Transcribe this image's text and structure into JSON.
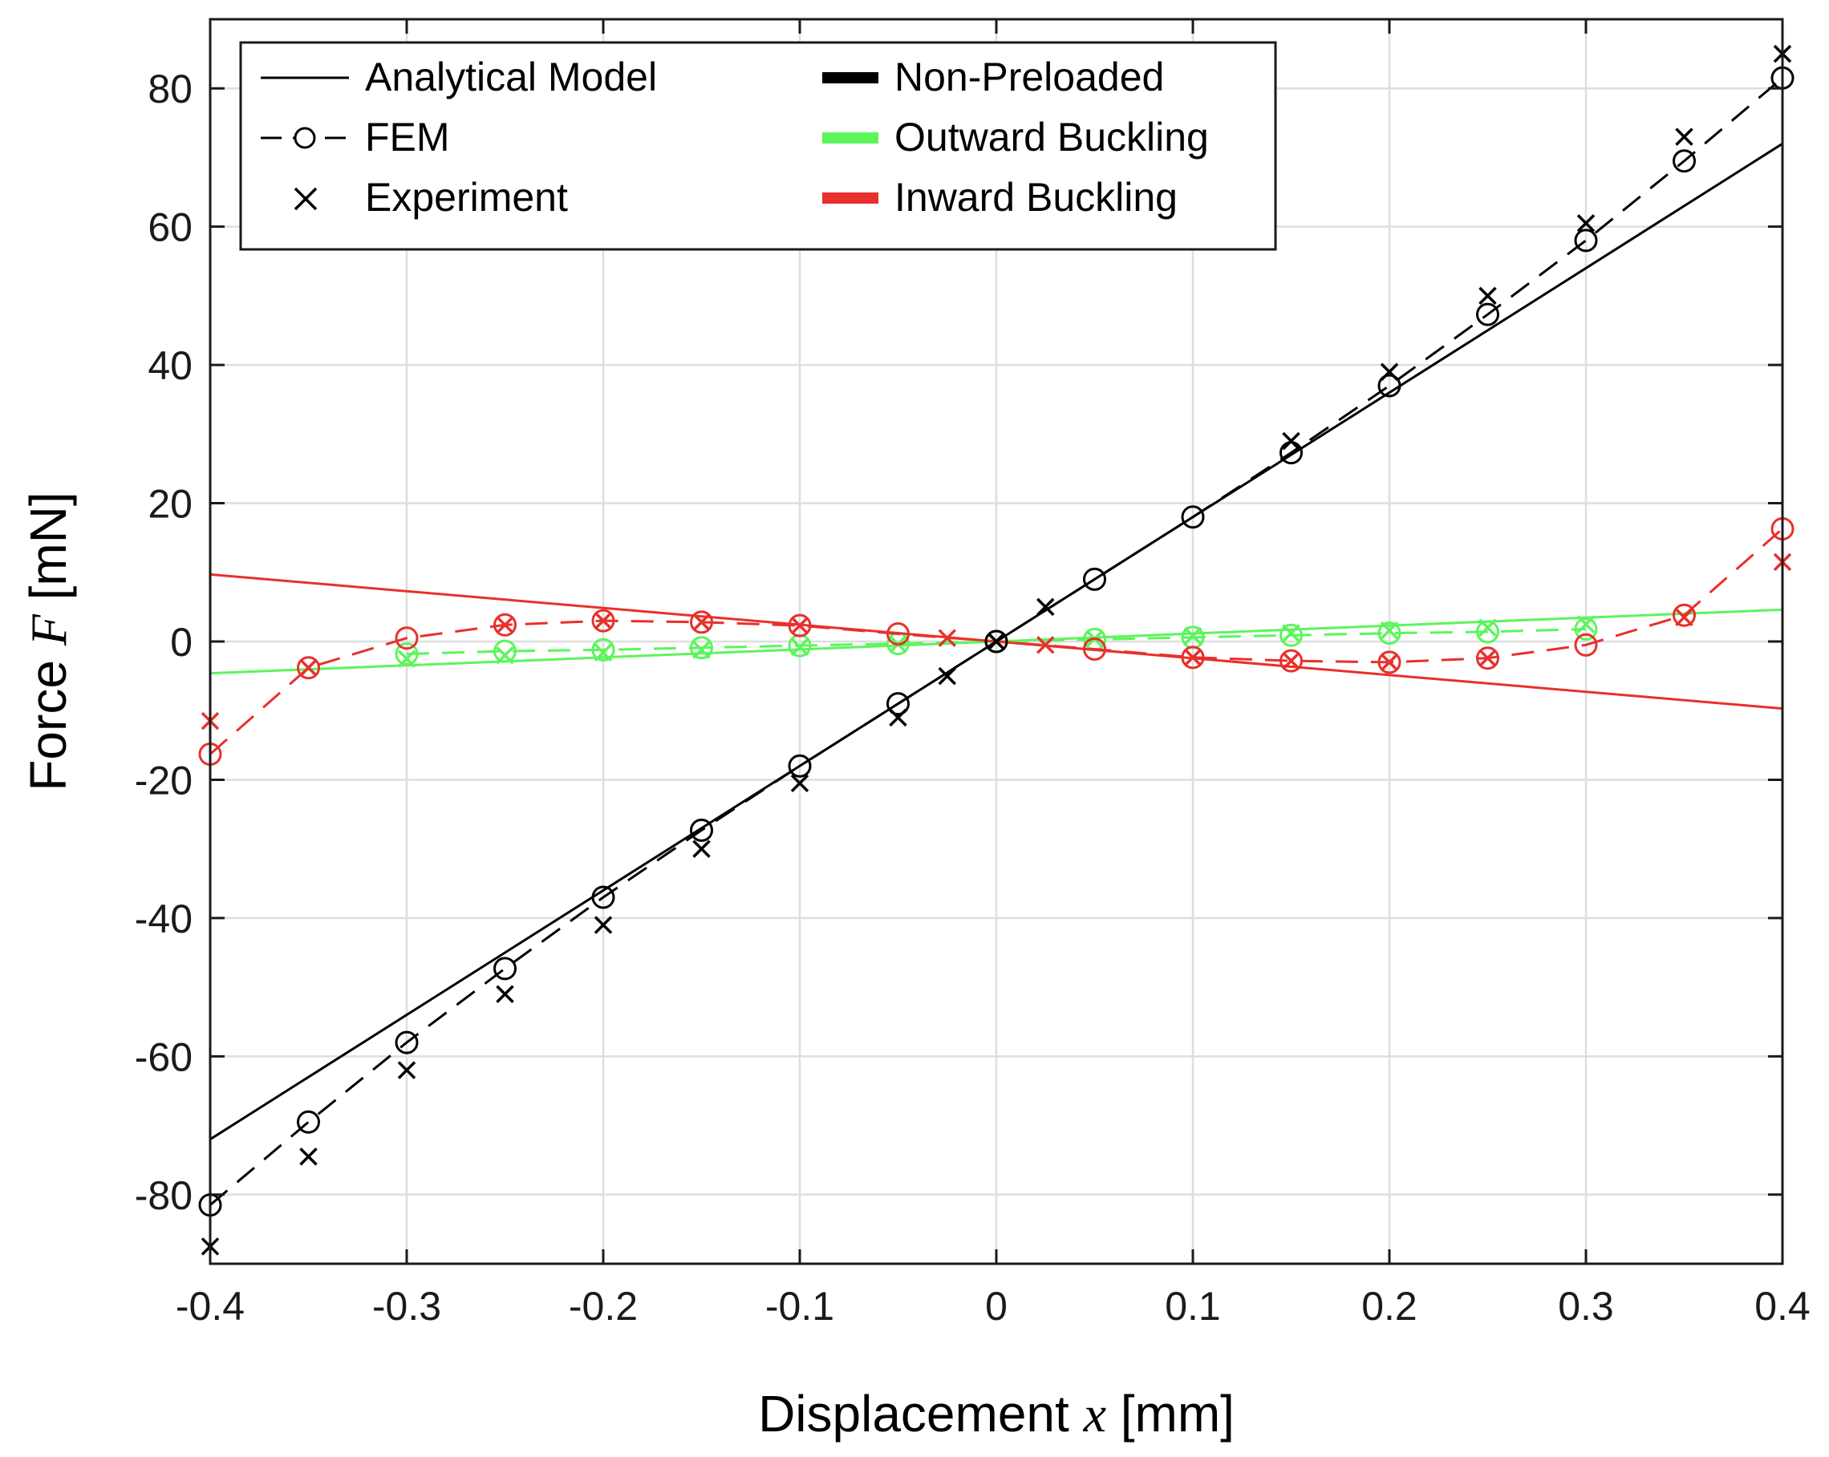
{
  "chart_data": {
    "type": "line",
    "xlabel": "Displacement",
    "xlabel_var": "x",
    "xlabel_unit": "[mm]",
    "ylabel": "Force",
    "ylabel_var": "F",
    "ylabel_unit": "[mN]",
    "xlim": [
      -0.4,
      0.4
    ],
    "ylim": [
      -90,
      90
    ],
    "xticks": [
      -0.4,
      -0.3,
      -0.2,
      -0.1,
      0,
      0.1,
      0.2,
      0.3,
      0.4
    ],
    "xtick_labels": [
      "-0.4",
      "-0.3",
      "-0.2",
      "-0.1",
      "0",
      "0.1",
      "0.2",
      "0.3",
      "0.4"
    ],
    "yticks": [
      -80,
      -60,
      -40,
      -20,
      0,
      20,
      40,
      60,
      80
    ],
    "ytick_labels": [
      "-80",
      "-60",
      "-40",
      "-20",
      "0",
      "20",
      "40",
      "60",
      "80"
    ],
    "grid": true,
    "legend": {
      "position": "top-left",
      "style_entries": [
        {
          "label": "Analytical Model",
          "kind": "solid"
        },
        {
          "label": "FEM",
          "kind": "dashed-circle"
        },
        {
          "label": "Experiment",
          "kind": "cross"
        }
      ],
      "color_entries": [
        {
          "label": "Non-Preloaded",
          "color": "#000000"
        },
        {
          "label": "Outward Buckling",
          "color": "#5cf55c"
        },
        {
          "label": "Inward Buckling",
          "color": "#e8302c"
        }
      ]
    },
    "series": [
      {
        "name": "Non-Preloaded",
        "color": "#000000",
        "analytical": {
          "x": [
            -0.4,
            0.4
          ],
          "y": [
            -72,
            72
          ]
        },
        "fem": {
          "x": [
            -0.4,
            -0.35,
            -0.3,
            -0.25,
            -0.2,
            -0.15,
            -0.1,
            -0.05,
            0,
            0.05,
            0.1,
            0.15,
            0.2,
            0.25,
            0.3,
            0.35,
            0.4
          ],
          "y": [
            -81.5,
            -69.5,
            -58,
            -47.3,
            -37,
            -27.3,
            -18,
            -9,
            0,
            9,
            18,
            27.3,
            37,
            47.3,
            58,
            69.5,
            81.5
          ]
        },
        "experiment": {
          "x": [
            -0.4,
            -0.35,
            -0.3,
            -0.25,
            -0.2,
            -0.15,
            -0.1,
            -0.05,
            -0.025,
            0,
            0.025,
            0.15,
            0.2,
            0.25,
            0.3,
            0.35,
            0.4
          ],
          "y": [
            -87.5,
            -74.5,
            -62,
            -51,
            -41,
            -30,
            -20.5,
            -11,
            -5,
            0,
            5,
            29,
            39,
            50,
            60.5,
            73,
            85
          ]
        }
      },
      {
        "name": "Outward Buckling",
        "color": "#5cf55c",
        "analytical": {
          "x": [
            -0.4,
            0.4
          ],
          "y": [
            -4.6,
            4.6
          ]
        },
        "fem": {
          "x": [
            -0.3,
            -0.25,
            -0.2,
            -0.15,
            -0.1,
            -0.05,
            0,
            0.05,
            0.1,
            0.15,
            0.2,
            0.25,
            0.3
          ],
          "y": [
            -1.8,
            -1.4,
            -1.2,
            -0.9,
            -0.6,
            -0.3,
            0,
            0.3,
            0.6,
            0.9,
            1.2,
            1.4,
            1.8
          ]
        },
        "experiment": {
          "x": [
            -0.3,
            -0.25,
            -0.2,
            -0.15,
            -0.1,
            -0.05,
            0,
            0.05,
            0.1,
            0.15,
            0.2,
            0.25,
            0.3
          ],
          "y": [
            -2.5,
            -2,
            -1.6,
            -1.2,
            -0.8,
            -0.4,
            0,
            0.4,
            0.8,
            1.2,
            1.6,
            2,
            2.5
          ]
        }
      },
      {
        "name": "Inward Buckling",
        "color": "#e8302c",
        "analytical": {
          "x": [
            -0.4,
            0.4
          ],
          "y": [
            9.7,
            -9.7
          ]
        },
        "fem": {
          "x": [
            -0.4,
            -0.35,
            -0.3,
            -0.25,
            -0.2,
            -0.15,
            -0.1,
            -0.05,
            0,
            0.05,
            0.1,
            0.15,
            0.2,
            0.25,
            0.3,
            0.35,
            0.4
          ],
          "y": [
            -16.3,
            -3.8,
            0.5,
            2.4,
            3,
            2.8,
            2.3,
            1.1,
            0,
            -1.1,
            -2.3,
            -2.8,
            -3,
            -2.4,
            -0.5,
            3.8,
            16.3
          ]
        },
        "experiment": {
          "x": [
            -0.4,
            -0.35,
            -0.25,
            -0.2,
            -0.15,
            -0.1,
            -0.025,
            0,
            0.025,
            0.1,
            0.15,
            0.2,
            0.25,
            0.35,
            0.4
          ],
          "y": [
            -11.5,
            -3.8,
            2.4,
            3,
            2.8,
            2.3,
            0.5,
            0,
            -0.5,
            -2.3,
            -2.8,
            -3,
            -2.4,
            3.5,
            11.5
          ]
        }
      }
    ]
  }
}
